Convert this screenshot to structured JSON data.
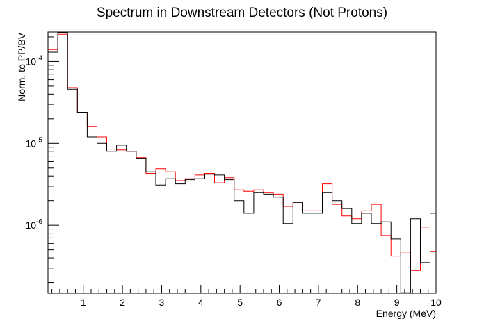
{
  "chart_data": {
    "type": "line",
    "title": "Spectrum in Downstream Detectors (Not Protons)",
    "xlabel": "Energy (MeV)",
    "ylabel": "Norm. to PP/BV",
    "xlim": [
      0.1,
      10
    ],
    "ylim_log10": [
      -6.83,
      -3.64
    ],
    "log_y": true,
    "x_ticks": [
      "1",
      "2",
      "3",
      "4",
      "5",
      "6",
      "7",
      "8",
      "9",
      "10"
    ],
    "y_ticks": [
      {
        "exp": "-6",
        "value": 1e-06
      },
      {
        "exp": "-5",
        "value": 1e-05
      },
      {
        "exp": "-4",
        "value": 0.0001
      }
    ],
    "bin_edges": [
      0.1,
      0.35,
      0.6,
      0.85,
      1.1,
      1.35,
      1.6,
      1.85,
      2.1,
      2.35,
      2.6,
      2.85,
      3.1,
      3.35,
      3.6,
      3.85,
      4.1,
      4.35,
      4.6,
      4.85,
      5.1,
      5.35,
      5.6,
      5.85,
      6.1,
      6.35,
      6.6,
      6.85,
      7.1,
      7.35,
      7.6,
      7.85,
      8.1,
      8.35,
      8.6,
      8.85,
      9.1,
      9.35,
      9.6,
      9.85,
      10.0
    ],
    "series": [
      {
        "color": "#000000",
        "values": [
          0.00013,
          0.000225,
          4.6e-05,
          2.4e-05,
          1.2e-05,
          1e-05,
          8e-06,
          9.5e-06,
          8e-06,
          6.5e-06,
          4.5e-06,
          3.1e-06,
          3.7e-06,
          3.2e-06,
          3.6e-06,
          3.7e-06,
          4.2e-06,
          4.1e-06,
          3.6e-06,
          2e-06,
          1.4e-06,
          2.5e-06,
          2.4e-06,
          2.2e-06,
          1.05e-06,
          1.9e-06,
          1.4e-06,
          1.4e-06,
          2.5e-06,
          2e-06,
          1.6e-06,
          1.05e-06,
          1.4e-06,
          1.05e-06,
          1.1e-06,
          6.8e-07,
          1.5e-07,
          1.2e-06,
          3.5e-07,
          1.4e-06
        ]
      },
      {
        "color": "#ff0000",
        "values": [
          0.00014,
          0.000215,
          4.8e-05,
          2.4e-05,
          1.6e-05,
          1.2e-05,
          8.5e-06,
          8.3e-06,
          8e-06,
          6.7e-06,
          4.3e-06,
          4.9e-06,
          4.5e-06,
          3.5e-06,
          3.7e-06,
          4.1e-06,
          4.3e-06,
          3.3e-06,
          3.8e-06,
          2.7e-06,
          2.6e-06,
          2.7e-06,
          2.5e-06,
          2.4e-06,
          1.7e-06,
          1.9e-06,
          1.5e-06,
          1.5e-06,
          3.2e-06,
          1.8e-06,
          1.3e-06,
          1.2e-06,
          1.5e-06,
          1.8e-06,
          7.5e-07,
          4.2e-07,
          4.7e-07,
          2.8e-07,
          9.5e-07,
          4.8e-07
        ]
      }
    ]
  }
}
